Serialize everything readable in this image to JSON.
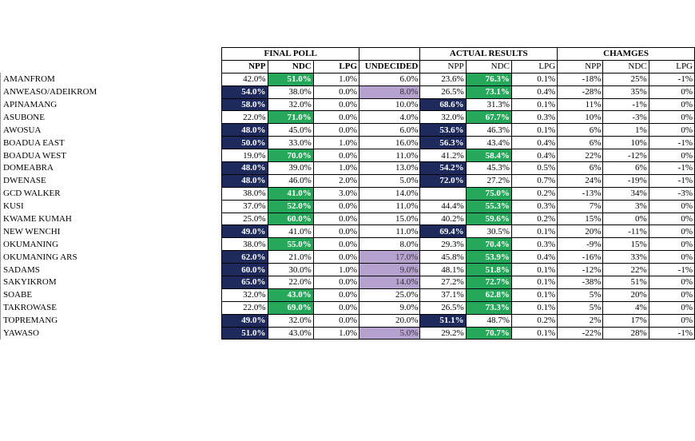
{
  "groups": {
    "final_poll": "FINAL POLL",
    "actual_results": "ACTUAL RESULTS",
    "changes": "CHAMGES"
  },
  "subheaders": [
    "NPP",
    "NDC",
    "LPG",
    "UNDECIDED",
    "NPP",
    "NDC",
    "LPG",
    "NPP",
    "NDC",
    "LPG"
  ],
  "colors": {
    "npp_highlight": "#1f2a5c",
    "ndc_highlight": "#25a85a",
    "undecided_highlight": "#b6a2cf"
  },
  "rows": [
    {
      "name": "AMANFROM",
      "cells": [
        "42.0%",
        "51.0%",
        "1.0%",
        "6.0%",
        "23.6%",
        "76.3%",
        "0.1%",
        "-18%",
        "25%",
        "-1%"
      ],
      "hl": [
        "",
        "green",
        "",
        "",
        "",
        "green",
        "",
        "",
        "",
        ""
      ]
    },
    {
      "name": "ANWEASO/ADEIKROM",
      "cells": [
        "54.0%",
        "38.0%",
        "0.0%",
        "8.0%",
        "26.5%",
        "73.1%",
        "0.4%",
        "-28%",
        "35%",
        "0%"
      ],
      "hl": [
        "navy",
        "",
        "",
        "purple",
        "",
        "green",
        "",
        "",
        "",
        ""
      ]
    },
    {
      "name": "APINAMANG",
      "cells": [
        "58.0%",
        "32.0%",
        "0.0%",
        "10.0%",
        "68.6%",
        "31.3%",
        "0.1%",
        "11%",
        "-1%",
        "0%"
      ],
      "hl": [
        "navy",
        "",
        "",
        "",
        "navy",
        "",
        "",
        "",
        "",
        ""
      ]
    },
    {
      "name": "ASUBONE",
      "cells": [
        "22.0%",
        "71.0%",
        "0.0%",
        "4.0%",
        "32.0%",
        "67.7%",
        "0.3%",
        "10%",
        "-3%",
        "0%"
      ],
      "hl": [
        "",
        "green",
        "",
        "",
        "",
        "green",
        "",
        "",
        "",
        ""
      ]
    },
    {
      "name": "AWOSUA",
      "cells": [
        "48.0%",
        "45.0%",
        "0.0%",
        "6.0%",
        "53.6%",
        "46.3%",
        "0.1%",
        "6%",
        "1%",
        "0%"
      ],
      "hl": [
        "navy",
        "",
        "",
        "",
        "navy",
        "",
        "",
        "",
        "",
        ""
      ]
    },
    {
      "name": "BOADUA EAST",
      "cells": [
        "50.0%",
        "33.0%",
        "1.0%",
        "16.0%",
        "56.3%",
        "43.4%",
        "0.4%",
        "6%",
        "10%",
        "-1%"
      ],
      "hl": [
        "navy",
        "",
        "",
        "",
        "navy",
        "",
        "",
        "",
        "",
        ""
      ]
    },
    {
      "name": "BOADUA WEST",
      "cells": [
        "19.0%",
        "70.0%",
        "0.0%",
        "11.0%",
        "41.2%",
        "58.4%",
        "0.4%",
        "22%",
        "-12%",
        "0%"
      ],
      "hl": [
        "",
        "green",
        "",
        "",
        "",
        "green",
        "",
        "",
        "",
        ""
      ]
    },
    {
      "name": "DOMEABRA",
      "cells": [
        "48.0%",
        "39.0%",
        "1.0%",
        "13.0%",
        "54.2%",
        "45.3%",
        "0.5%",
        "6%",
        "6%",
        "-1%"
      ],
      "hl": [
        "navy",
        "",
        "",
        "",
        "navy",
        "",
        "",
        "",
        "",
        ""
      ]
    },
    {
      "name": "DWENASE",
      "cells": [
        "48.0%",
        "46.0%",
        "2.0%",
        "5.0%",
        "72.0%",
        "27.2%",
        "0.7%",
        "24%",
        "-19%",
        "-1%"
      ],
      "hl": [
        "navy",
        "",
        "",
        "",
        "navy",
        "",
        "",
        "",
        "",
        ""
      ]
    },
    {
      "name": "GCD WALKER",
      "cells": [
        "38.0%",
        "41.0%",
        "3.0%",
        "14.0%",
        "",
        "75.0%",
        "0.2%",
        "-13%",
        "34%",
        "-3%"
      ],
      "hl": [
        "",
        "green",
        "",
        "",
        "",
        "green",
        "",
        "",
        "",
        ""
      ]
    },
    {
      "name": "KUSI",
      "cells": [
        "37.0%",
        "52.0%",
        "0.0%",
        "11.0%",
        "44.4%",
        "55.3%",
        "0.3%",
        "7%",
        "3%",
        "0%"
      ],
      "hl": [
        "",
        "green",
        "",
        "",
        "",
        "green",
        "",
        "",
        "",
        ""
      ]
    },
    {
      "name": "KWAME KUMAH",
      "cells": [
        "25.0%",
        "60.0%",
        "0.0%",
        "15.0%",
        "40.2%",
        "59.6%",
        "0.2%",
        "15%",
        "0%",
        "0%"
      ],
      "hl": [
        "",
        "green",
        "",
        "",
        "",
        "green",
        "",
        "",
        "",
        ""
      ]
    },
    {
      "name": "NEW WENCHI",
      "cells": [
        "49.0%",
        "41.0%",
        "0.0%",
        "11.0%",
        "69.4%",
        "30.5%",
        "0.1%",
        "20%",
        "-11%",
        "0%"
      ],
      "hl": [
        "navy",
        "",
        "",
        "",
        "navy",
        "",
        "",
        "",
        "",
        ""
      ]
    },
    {
      "name": "OKUMANING",
      "cells": [
        "38.0%",
        "55.0%",
        "0.0%",
        "8.0%",
        "29.3%",
        "70.4%",
        "0.3%",
        "-9%",
        "15%",
        "0%"
      ],
      "hl": [
        "",
        "green",
        "",
        "",
        "",
        "green",
        "",
        "",
        "",
        ""
      ]
    },
    {
      "name": "OKUMANING ARS",
      "cells": [
        "62.0%",
        "21.0%",
        "0.0%",
        "17.0%",
        "45.8%",
        "53.9%",
        "0.4%",
        "-16%",
        "33%",
        "0%"
      ],
      "hl": [
        "navy",
        "",
        "",
        "purple",
        "",
        "green",
        "",
        "",
        "",
        ""
      ]
    },
    {
      "name": "SADAMS",
      "cells": [
        "60.0%",
        "30.0%",
        "1.0%",
        "9.0%",
        "48.1%",
        "51.8%",
        "0.1%",
        "-12%",
        "22%",
        "-1%"
      ],
      "hl": [
        "navy",
        "",
        "",
        "purple",
        "",
        "green",
        "",
        "",
        "",
        ""
      ]
    },
    {
      "name": "SAKYIKROM",
      "cells": [
        "65.0%",
        "22.0%",
        "0.0%",
        "14.0%",
        "27.2%",
        "72.7%",
        "0.1%",
        "-38%",
        "51%",
        "0%"
      ],
      "hl": [
        "navy",
        "",
        "",
        "purple",
        "",
        "green",
        "",
        "",
        "",
        ""
      ]
    },
    {
      "name": "SOABE",
      "cells": [
        "32.0%",
        "43.0%",
        "0.0%",
        "25.0%",
        "37.1%",
        "62.8%",
        "0.1%",
        "5%",
        "20%",
        "0%"
      ],
      "hl": [
        "",
        "green",
        "",
        "",
        "",
        "green",
        "",
        "",
        "",
        ""
      ]
    },
    {
      "name": "TAKROWASE",
      "cells": [
        "22.0%",
        "69.0%",
        "0.0%",
        "9.0%",
        "26.5%",
        "73.3%",
        "0.1%",
        "5%",
        "4%",
        "0%"
      ],
      "hl": [
        "",
        "green",
        "",
        "",
        "",
        "green",
        "",
        "",
        "",
        ""
      ]
    },
    {
      "name": "TOPREMANG",
      "cells": [
        "49.0%",
        "32.0%",
        "0.0%",
        "20.0%",
        "51.1%",
        "48.7%",
        "0.2%",
        "2%",
        "17%",
        "0%"
      ],
      "hl": [
        "navy",
        "",
        "",
        "",
        "navy",
        "",
        "",
        "",
        "",
        ""
      ]
    },
    {
      "name": "YAWASO",
      "cells": [
        "51.0%",
        "43.0%",
        "1.0%",
        "5.0%",
        "29.2%",
        "70.7%",
        "0.1%",
        "-22%",
        "28%",
        "-1%"
      ],
      "hl": [
        "navy",
        "",
        "",
        "purple",
        "",
        "green",
        "",
        "",
        "",
        ""
      ]
    }
  ]
}
